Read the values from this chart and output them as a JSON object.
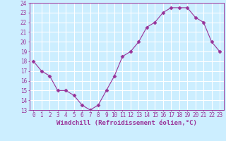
{
  "x": [
    0,
    1,
    2,
    3,
    4,
    5,
    6,
    7,
    8,
    9,
    10,
    11,
    12,
    13,
    14,
    15,
    16,
    17,
    18,
    19,
    20,
    21,
    22,
    23
  ],
  "y": [
    18.0,
    17.0,
    16.5,
    15.0,
    15.0,
    14.5,
    13.5,
    13.0,
    13.5,
    15.0,
    16.5,
    18.5,
    19.0,
    20.0,
    21.5,
    22.0,
    23.0,
    23.5,
    23.5,
    23.5,
    22.5,
    22.0,
    20.0,
    19.0
  ],
  "ylim": [
    13,
    24
  ],
  "yticks": [
    13,
    14,
    15,
    16,
    17,
    18,
    19,
    20,
    21,
    22,
    23,
    24
  ],
  "xticks": [
    0,
    1,
    2,
    3,
    4,
    5,
    6,
    7,
    8,
    9,
    10,
    11,
    12,
    13,
    14,
    15,
    16,
    17,
    18,
    19,
    20,
    21,
    22,
    23
  ],
  "xlabel": "Windchill (Refroidissement éolien,°C)",
  "line_color": "#993399",
  "marker": "D",
  "marker_size": 2.5,
  "bg_color": "#cceeff",
  "grid_color": "#ffffff",
  "tick_fontsize": 5.5,
  "xlabel_fontsize": 6.5
}
